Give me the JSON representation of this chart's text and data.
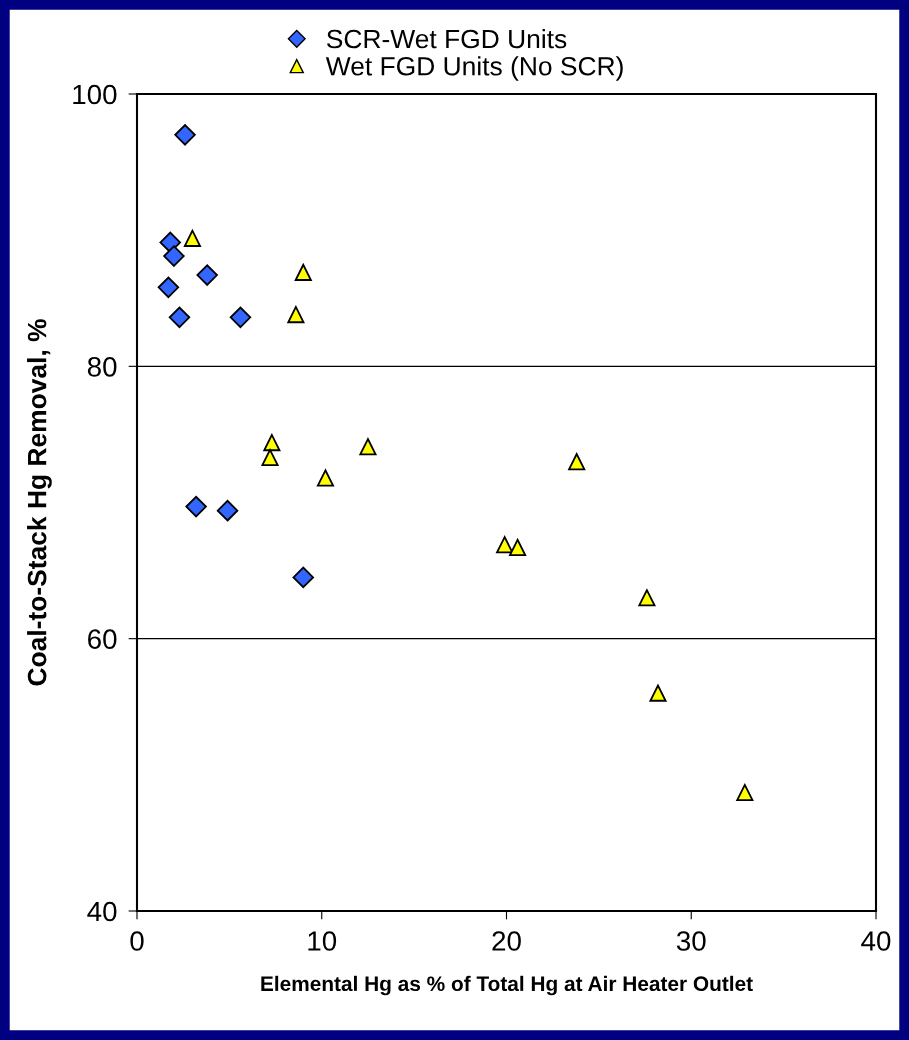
{
  "chart_data": {
    "type": "scatter",
    "xlabel": "Elemental Hg as % of Total Hg at Air Heater Outlet",
    "ylabel": "Coal-to-Stack Hg Removal, %",
    "xlim": [
      0,
      40
    ],
    "ylim": [
      40,
      100
    ],
    "xticks": [
      0,
      10,
      20,
      30,
      40
    ],
    "yticks": [
      40,
      60,
      80,
      100
    ],
    "grid": "y",
    "legend": "top",
    "series": [
      {
        "name": "SCR-Wet FGD Units",
        "color": "#3366ff",
        "marker": "diamond",
        "x": [
          2.6,
          1.8,
          2.0,
          3.8,
          1.7,
          2.3,
          5.6,
          3.2,
          4.9,
          9.0
        ],
        "values": [
          97.0,
          89.1,
          88.1,
          86.7,
          85.8,
          83.6,
          83.6,
          69.7,
          69.4,
          64.5
        ]
      },
      {
        "name": "Wet FGD Units (No SCR)",
        "color": "#ffff00",
        "marker": "triangle",
        "x": [
          3.0,
          9.0,
          8.6,
          7.3,
          7.2,
          10.2,
          12.5,
          23.8,
          19.9,
          20.6,
          27.6,
          28.2,
          32.9
        ],
        "values": [
          89.4,
          86.9,
          83.8,
          74.4,
          73.3,
          71.8,
          74.1,
          73.0,
          66.9,
          66.7,
          63.0,
          56.0,
          48.7
        ]
      }
    ]
  }
}
